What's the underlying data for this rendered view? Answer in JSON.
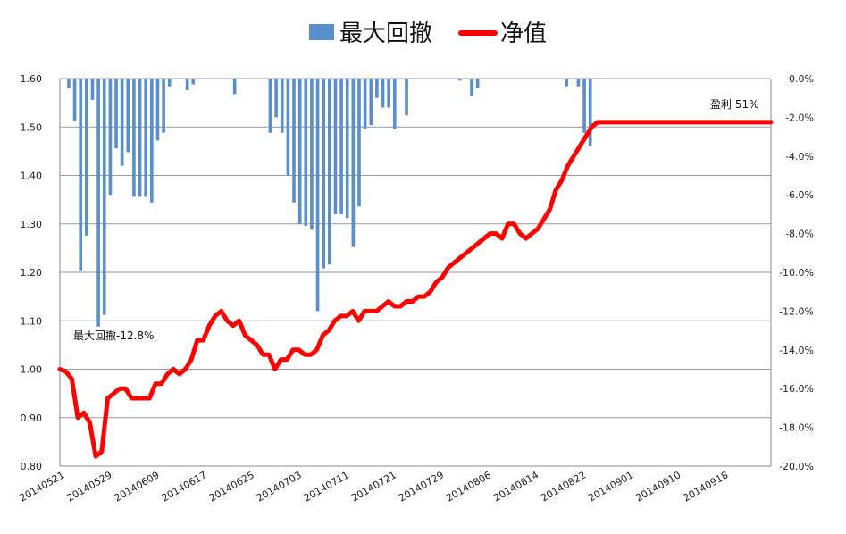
{
  "chart_data": {
    "type": "bar+line",
    "legend": {
      "position": "top",
      "items": [
        {
          "name": "最大回撤",
          "kind": "bar",
          "color": "#5B8FCC"
        },
        {
          "name": "净值",
          "kind": "line",
          "color": "#FF0000"
        }
      ]
    },
    "left_axis": {
      "min": 0.8,
      "max": 1.6,
      "ticks": [
        "0.80",
        "0.90",
        "1.00",
        "1.10",
        "1.20",
        "1.30",
        "1.40",
        "1.50",
        "1.60"
      ]
    },
    "right_axis": {
      "min": -20,
      "max": 0,
      "ticks": [
        "-20.0%",
        "-18.0%",
        "-16.0%",
        "-14.0%",
        "-12.0%",
        "-10.0%",
        "-8.0%",
        "-6.0%",
        "-4.0%",
        "-2.0%",
        "0.0%"
      ]
    },
    "x_tick_labels": [
      "20140521",
      "20140529",
      "20140609",
      "20140617",
      "20140625",
      "20140703",
      "20140711",
      "20140721",
      "20140729",
      "20140806",
      "20140814",
      "20140822",
      "20140901",
      "20140910",
      "20140918"
    ],
    "grid": true,
    "annotations": {
      "max_drawdown": "最大回撤-12.8%",
      "profit": "盈利 51%"
    },
    "series": [
      {
        "name": "最大回撤",
        "axis": "right",
        "values": [
          0,
          -0.5,
          -2.2,
          -9.9,
          -8.1,
          -1.1,
          -12.8,
          -12.2,
          -6.0,
          -3.6,
          -4.5,
          -3.8,
          -6.1,
          -6.1,
          -6.1,
          -6.4,
          -3.2,
          -2.8,
          -0.4,
          0,
          0,
          -0.6,
          -0.3,
          0,
          0,
          0,
          0,
          0,
          0,
          -0.8,
          0,
          0,
          0,
          0,
          0,
          -2.8,
          -2.0,
          -2.8,
          -5.0,
          -6.4,
          -7.5,
          -7.6,
          -7.8,
          -12.0,
          -9.8,
          -9.6,
          -7.0,
          -7.0,
          -7.2,
          -8.7,
          -6.6,
          -2.6,
          -2.4,
          -1.0,
          -1.5,
          -1.5,
          -2.6,
          0,
          -1.9,
          0,
          0,
          0,
          0,
          0,
          0,
          0,
          0,
          -0.1,
          0,
          -0.9,
          -0.5,
          0,
          0,
          0,
          0,
          0,
          0,
          0,
          0,
          0,
          0,
          0,
          0,
          0,
          0,
          -0.4,
          0,
          -0.4,
          -2.8,
          -3.5,
          0,
          0,
          0,
          0,
          0,
          0,
          0,
          0,
          0,
          0,
          0,
          0,
          0,
          0,
          0,
          0,
          0,
          0,
          0,
          0,
          0,
          0,
          0,
          0,
          0,
          0,
          0,
          0,
          0,
          0
        ]
      },
      {
        "name": "净值",
        "axis": "left",
        "values": [
          1.0,
          0.995,
          0.98,
          0.9,
          0.91,
          0.89,
          0.82,
          0.83,
          0.94,
          0.95,
          0.96,
          0.96,
          0.94,
          0.94,
          0.94,
          0.94,
          0.97,
          0.97,
          0.99,
          1.0,
          0.99,
          1.0,
          1.02,
          1.06,
          1.06,
          1.09,
          1.11,
          1.12,
          1.1,
          1.09,
          1.1,
          1.07,
          1.06,
          1.05,
          1.03,
          1.03,
          1.0,
          1.02,
          1.02,
          1.04,
          1.04,
          1.03,
          1.03,
          1.04,
          1.07,
          1.08,
          1.1,
          1.11,
          1.11,
          1.12,
          1.1,
          1.12,
          1.12,
          1.12,
          1.13,
          1.14,
          1.13,
          1.13,
          1.14,
          1.14,
          1.15,
          1.15,
          1.16,
          1.18,
          1.19,
          1.21,
          1.22,
          1.23,
          1.24,
          1.25,
          1.26,
          1.27,
          1.28,
          1.28,
          1.27,
          1.3,
          1.3,
          1.28,
          1.27,
          1.28,
          1.29,
          1.31,
          1.33,
          1.37,
          1.39,
          1.42,
          1.44,
          1.46,
          1.48,
          1.5,
          1.51,
          1.51,
          1.51,
          1.51,
          1.51,
          1.51,
          1.51,
          1.51,
          1.51,
          1.51,
          1.51,
          1.51,
          1.51,
          1.51,
          1.51,
          1.51,
          1.51,
          1.51,
          1.51,
          1.51,
          1.51,
          1.51,
          1.51,
          1.51,
          1.51,
          1.51,
          1.51,
          1.51,
          1.51,
          1.51
        ]
      }
    ]
  }
}
